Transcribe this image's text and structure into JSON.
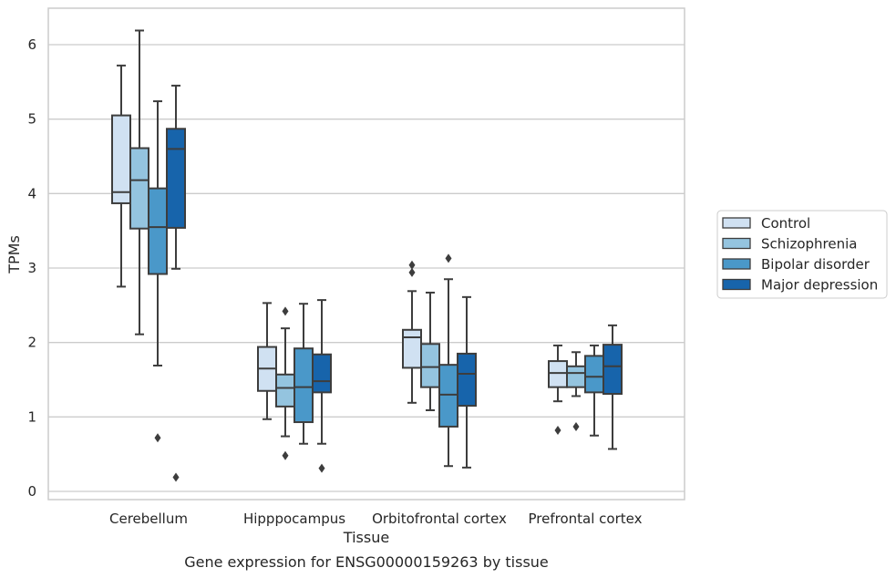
{
  "chart_data": {
    "type": "box",
    "caption": "Gene expression for ENSG00000159263 by tissue",
    "xlabel": "Tissue",
    "ylabel": "TPMs",
    "ylim": [
      -0.1,
      6.5
    ],
    "yticks": [
      0,
      1,
      2,
      3,
      4,
      5,
      6
    ],
    "grid": "horizontal",
    "legend_position": "right",
    "categories": [
      "Cerebellum",
      "Hipppocampus",
      "Orbitofrontal cortex",
      "Prefrontal cortex"
    ],
    "series": [
      {
        "name": "Control",
        "color": "#d0e1f2",
        "boxes": [
          {
            "whisker_low": 2.75,
            "q1": 3.87,
            "median": 4.02,
            "q3": 5.05,
            "whisker_high": 5.72,
            "outliers": []
          },
          {
            "whisker_low": 0.97,
            "q1": 1.35,
            "median": 1.65,
            "q3": 1.94,
            "whisker_high": 2.53,
            "outliers": []
          },
          {
            "whisker_low": 1.19,
            "q1": 1.66,
            "median": 2.07,
            "q3": 2.17,
            "whisker_high": 2.69,
            "outliers": [
              2.94,
              3.04
            ]
          },
          {
            "whisker_low": 1.21,
            "q1": 1.4,
            "median": 1.59,
            "q3": 1.75,
            "whisker_high": 1.96,
            "outliers": [
              0.82
            ]
          }
        ]
      },
      {
        "name": "Schizophrenia",
        "color": "#94c4df",
        "boxes": [
          {
            "whisker_low": 2.11,
            "q1": 3.53,
            "median": 4.18,
            "q3": 4.61,
            "whisker_high": 6.19,
            "outliers": []
          },
          {
            "whisker_low": 0.74,
            "q1": 1.14,
            "median": 1.39,
            "q3": 1.57,
            "whisker_high": 2.19,
            "outliers": [
              0.48,
              2.42
            ]
          },
          {
            "whisker_low": 1.09,
            "q1": 1.4,
            "median": 1.67,
            "q3": 1.98,
            "whisker_high": 2.67,
            "outliers": []
          },
          {
            "whisker_low": 1.28,
            "q1": 1.4,
            "median": 1.59,
            "q3": 1.68,
            "whisker_high": 1.87,
            "outliers": [
              0.87
            ]
          }
        ]
      },
      {
        "name": "Bipolar disorder",
        "color": "#4a98c9",
        "boxes": [
          {
            "whisker_low": 1.69,
            "q1": 2.92,
            "median": 3.55,
            "q3": 4.07,
            "whisker_high": 5.24,
            "outliers": [
              0.72
            ]
          },
          {
            "whisker_low": 0.64,
            "q1": 0.93,
            "median": 1.4,
            "q3": 1.92,
            "whisker_high": 2.52,
            "outliers": []
          },
          {
            "whisker_low": 0.34,
            "q1": 0.87,
            "median": 1.3,
            "q3": 1.7,
            "whisker_high": 2.85,
            "outliers": [
              3.13
            ]
          },
          {
            "whisker_low": 0.75,
            "q1": 1.33,
            "median": 1.54,
            "q3": 1.82,
            "whisker_high": 1.96,
            "outliers": []
          }
        ]
      },
      {
        "name": "Major depression",
        "color": "#1764ab",
        "boxes": [
          {
            "whisker_low": 2.99,
            "q1": 3.54,
            "median": 4.6,
            "q3": 4.87,
            "whisker_high": 5.45,
            "outliers": [
              0.19
            ]
          },
          {
            "whisker_low": 0.64,
            "q1": 1.33,
            "median": 1.48,
            "q3": 1.84,
            "whisker_high": 2.57,
            "outliers": [
              0.31
            ]
          },
          {
            "whisker_low": 0.32,
            "q1": 1.15,
            "median": 1.58,
            "q3": 1.85,
            "whisker_high": 2.61,
            "outliers": []
          },
          {
            "whisker_low": 0.57,
            "q1": 1.31,
            "median": 1.68,
            "q3": 1.97,
            "whisker_high": 2.23,
            "outliers": []
          }
        ]
      }
    ]
  }
}
